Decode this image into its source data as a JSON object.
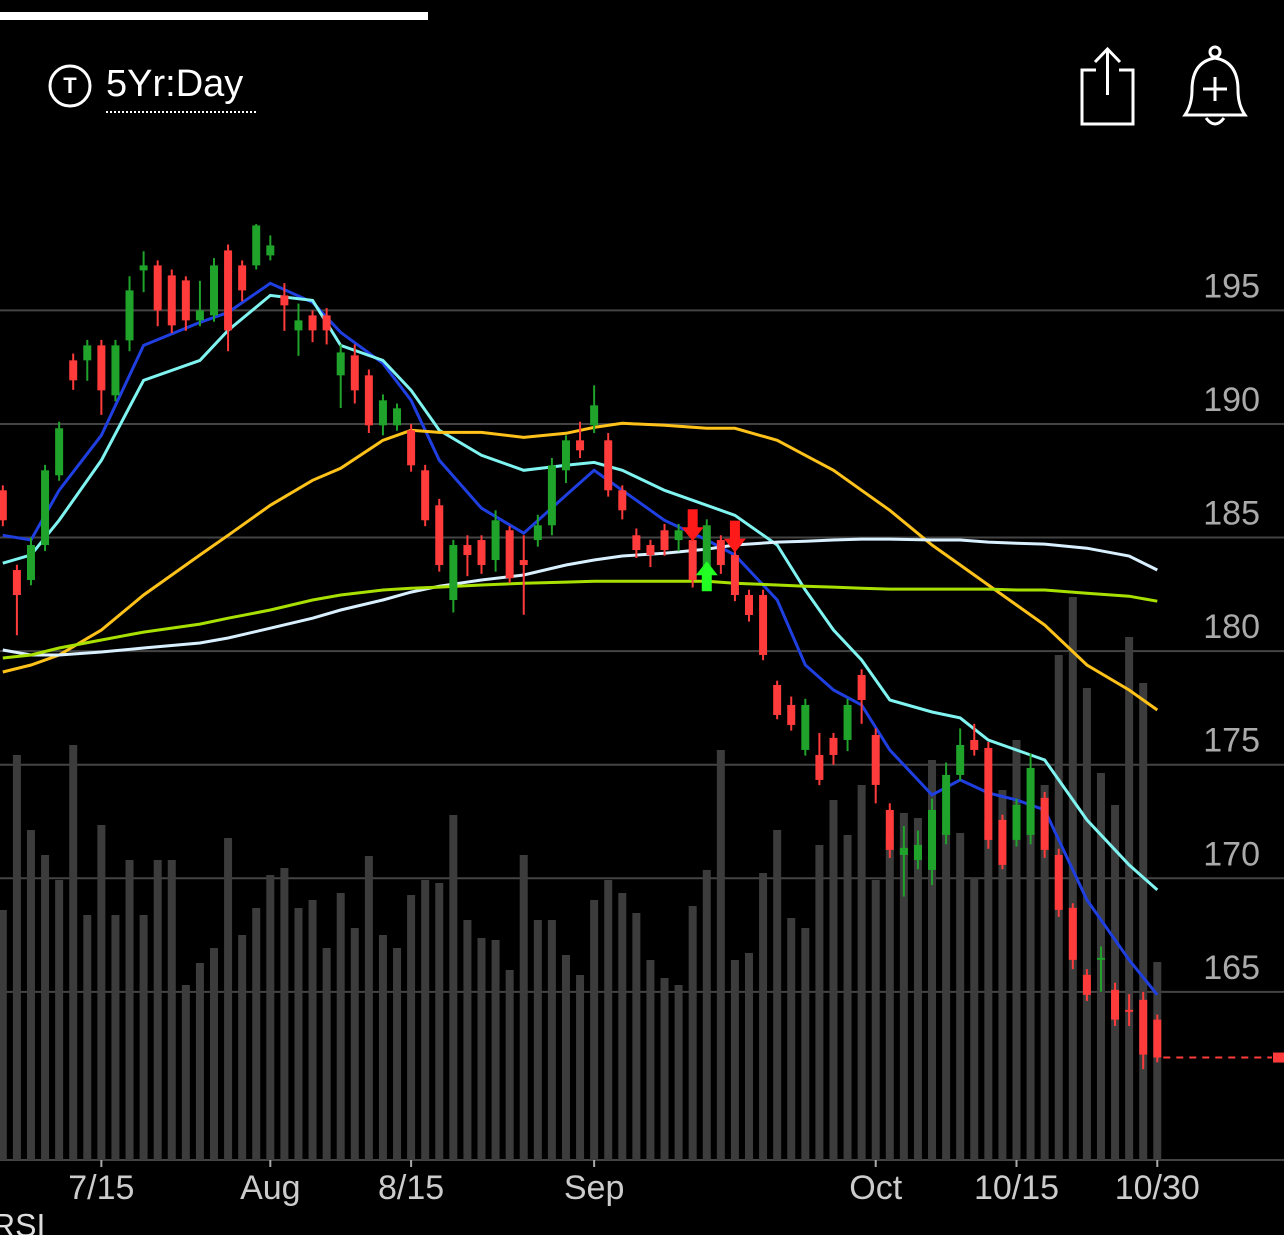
{
  "header": {
    "icon_letter": "T",
    "timeframe": "5Yr:Day"
  },
  "chart_data": {
    "type": "candlestick",
    "xlim": [
      -0.2,
      91
    ],
    "ylim": [
      157.6,
      202.5
    ],
    "yticks": [
      165,
      170,
      175,
      180,
      185,
      190,
      195
    ],
    "xticks": [
      {
        "value": 7,
        "label": "7/15"
      },
      {
        "value": 19,
        "label": "Aug"
      },
      {
        "value": 29,
        "label": "8/15"
      },
      {
        "value": 42,
        "label": "Sep"
      },
      {
        "value": 62,
        "label": "Oct"
      },
      {
        "value": 72,
        "label": "10/15"
      },
      {
        "value": 82,
        "label": "10/30"
      }
    ],
    "grid": true,
    "up_color": "#1fa32a",
    "down_color": "#ff3b3b",
    "open": [
      187.08,
      183.57,
      183.13,
      184.67,
      187.74,
      192.8,
      192.8,
      193.46,
      191.26,
      193.68,
      196.76,
      196.98,
      196.54,
      196.32,
      194.56,
      194.78,
      197.64,
      196.98,
      196.98,
      197.42,
      195.66,
      194.12,
      194.78,
      194.78,
      192.14,
      193.02,
      192.14,
      189.94,
      189.94,
      189.72,
      187.96,
      186.42,
      182.25,
      184.67,
      184.89,
      184.01,
      185.32,
      184.01,
      184.89,
      185.54,
      187.96,
      189.28,
      189.94,
      189.28,
      187.08,
      185.1,
      184.67,
      185.32,
      184.89,
      184.89,
      183.13,
      184.89,
      184.23,
      182.47,
      182.47,
      178.51,
      177.63,
      175.65,
      175.43,
      176.18,
      176.09,
      178.95,
      176.31,
      173.01,
      171.03,
      170.81,
      170.37,
      171.91,
      174.55,
      176.09,
      175.74,
      172.57,
      171.69,
      171.91,
      173.54,
      171.03,
      168.7,
      165.75,
      166.41,
      165.09,
      164.21,
      164.65,
      163.78
    ],
    "high": [
      187.3,
      183.8,
      185.0,
      188.2,
      190.1,
      193.1,
      193.7,
      193.7,
      193.7,
      196.5,
      197.6,
      197.2,
      196.8,
      196.5,
      196.3,
      197.3,
      197.9,
      197.2,
      198.8,
      198.3,
      196.2,
      195.3,
      195.0,
      195.1,
      193.5,
      193.5,
      192.4,
      191.3,
      190.9,
      190.0,
      188.2,
      186.7,
      184.9,
      185.1,
      185.1,
      186.2,
      185.5,
      185.1,
      186.0,
      188.5,
      189.5,
      190.1,
      191.7,
      189.6,
      187.3,
      185.4,
      184.9,
      185.6,
      185.6,
      185.1,
      185.8,
      185.1,
      184.6,
      182.7,
      182.7,
      178.7,
      178.0,
      177.9,
      176.4,
      176.4,
      177.9,
      179.2,
      176.6,
      173.3,
      172.3,
      172.1,
      173.5,
      175.1,
      176.6,
      176.8,
      176.0,
      172.8,
      173.5,
      175.5,
      173.8,
      171.3,
      168.9,
      166.0,
      167.0,
      165.4,
      164.9,
      165.0,
      164.0
    ],
    "low": [
      185.5,
      180.7,
      182.9,
      184.4,
      187.5,
      191.5,
      191.9,
      190.4,
      191.0,
      193.2,
      195.8,
      194.3,
      194.0,
      194.1,
      194.3,
      194.5,
      193.2,
      195.4,
      196.8,
      197.2,
      194.1,
      193.0,
      193.6,
      193.5,
      190.7,
      190.9,
      189.6,
      189.5,
      189.7,
      187.9,
      185.5,
      183.5,
      181.7,
      183.3,
      183.4,
      183.5,
      183.0,
      181.6,
      184.6,
      185.1,
      187.4,
      188.5,
      189.6,
      186.8,
      185.8,
      184.1,
      183.7,
      184.2,
      184.4,
      182.8,
      182.9,
      183.4,
      182.2,
      181.3,
      179.6,
      177.0,
      176.5,
      175.4,
      174.1,
      175.0,
      175.6,
      176.8,
      173.3,
      170.9,
      169.2,
      170.4,
      169.7,
      171.5,
      174.3,
      175.4,
      171.3,
      170.4,
      171.4,
      171.5,
      170.9,
      168.3,
      166.0,
      164.6,
      165.0,
      163.5,
      163.5,
      161.6,
      161.9
    ],
    "close": [
      185.76,
      182.47,
      184.67,
      187.96,
      189.81,
      191.92,
      193.46,
      191.48,
      193.46,
      195.88,
      196.98,
      195.0,
      194.34,
      194.56,
      195.0,
      196.98,
      194.12,
      195.88,
      198.74,
      197.86,
      195.22,
      194.56,
      194.12,
      194.12,
      193.15,
      191.48,
      189.94,
      191.04,
      190.69,
      188.18,
      185.76,
      183.79,
      184.67,
      184.23,
      183.79,
      185.76,
      183.21,
      183.79,
      185.54,
      188.18,
      189.28,
      188.84,
      190.82,
      187.08,
      186.2,
      184.45,
      184.23,
      184.45,
      185.32,
      183.13,
      185.54,
      183.79,
      182.47,
      181.59,
      179.83,
      177.19,
      176.75,
      177.63,
      174.33,
      175.43,
      177.63,
      177.85,
      174.11,
      171.25,
      171.34,
      171.47,
      173.01,
      174.55,
      175.87,
      175.65,
      171.69,
      170.59,
      173.23,
      174.86,
      171.25,
      168.61,
      166.41,
      164.87,
      166.5,
      163.78,
      164.13,
      162.24,
      162.11
    ],
    "volume": [
      250,
      405,
      330,
      305,
      280,
      415,
      245,
      335,
      245,
      300,
      245,
      300,
      300,
      175,
      197,
      212,
      322,
      225,
      252,
      285,
      292,
      252,
      260,
      212,
      267,
      232,
      304,
      225,
      212,
      265,
      280,
      277,
      345,
      240,
      222,
      220,
      190,
      305,
      240,
      240,
      205,
      185,
      260,
      280,
      267,
      247,
      200,
      182,
      175,
      254,
      290,
      410,
      200,
      207,
      287,
      330,
      242,
      232,
      315,
      360,
      325,
      375,
      280,
      322,
      347,
      342,
      400,
      342,
      327,
      282,
      340,
      370,
      420,
      360,
      375,
      505,
      563,
      472,
      387,
      355,
      523,
      477,
      198
    ],
    "volume_lim": [
      0,
      600
    ],
    "volume_color": "#3c3c3c",
    "moving_averages": [
      {
        "color": "#1f3fe0",
        "x": [
          0,
          2,
          4,
          7,
          10,
          14,
          16,
          19,
          22,
          24,
          27,
          29,
          31,
          34,
          37,
          40,
          42,
          44,
          47,
          50,
          52,
          55,
          57,
          59,
          61,
          63,
          66,
          68,
          70,
          72,
          74,
          77,
          80,
          82
        ],
        "values": [
          185.1,
          184.89,
          187.08,
          189.5,
          193.46,
          194.47,
          194.91,
          196.19,
          195.35,
          194.03,
          192.67,
          191.04,
          188.4,
          186.29,
          185.19,
          186.86,
          187.96,
          187.08,
          185.76,
          184.89,
          184.23,
          182.25,
          179.39,
          178.29,
          177.63,
          175.65,
          173.67,
          174.33,
          173.76,
          173.45,
          173.01,
          169.05,
          166.41,
          164.87
        ]
      },
      {
        "color": "#80f4f0",
        "x": [
          0,
          2,
          4,
          7,
          10,
          14,
          16,
          19,
          22,
          24,
          27,
          29,
          31,
          34,
          37,
          40,
          42,
          44,
          47,
          50,
          52,
          55,
          57,
          59,
          61,
          63,
          66,
          68,
          70,
          72,
          74,
          77,
          80,
          82
        ],
        "values": [
          183.87,
          184.23,
          185.76,
          188.4,
          191.92,
          192.8,
          194.12,
          195.66,
          195.44,
          193.46,
          192.8,
          191.48,
          189.72,
          188.62,
          187.96,
          188.18,
          188.31,
          187.96,
          187.08,
          186.42,
          185.98,
          184.67,
          182.69,
          180.93,
          179.61,
          177.85,
          177.32,
          177.06,
          176.09,
          175.65,
          175.21,
          172.57,
          170.59,
          169.49
        ]
      },
      {
        "color": "#ffc21a",
        "x": [
          0,
          2,
          4,
          7,
          10,
          14,
          16,
          19,
          22,
          24,
          27,
          29,
          31,
          34,
          37,
          40,
          42,
          44,
          47,
          50,
          52,
          55,
          57,
          59,
          61,
          63,
          66,
          68,
          70,
          72,
          74,
          77,
          80,
          82
        ],
        "values": [
          179.08,
          179.39,
          179.83,
          180.93,
          182.47,
          184.23,
          185.1,
          186.42,
          187.52,
          188.05,
          189.28,
          189.72,
          189.63,
          189.63,
          189.41,
          189.59,
          189.85,
          190.03,
          189.94,
          189.81,
          189.81,
          189.28,
          188.62,
          187.96,
          187.08,
          186.2,
          184.67,
          183.79,
          182.91,
          182.03,
          181.15,
          179.39,
          178.29,
          177.41
        ]
      },
      {
        "color": "#d8f0ff",
        "x": [
          0,
          2,
          4,
          7,
          10,
          14,
          16,
          19,
          22,
          24,
          27,
          29,
          31,
          34,
          37,
          40,
          42,
          44,
          47,
          50,
          52,
          55,
          57,
          59,
          61,
          63,
          66,
          68,
          70,
          72,
          74,
          77,
          80,
          82
        ],
        "values": [
          180.05,
          179.83,
          179.83,
          179.96,
          180.14,
          180.36,
          180.58,
          181.01,
          181.45,
          181.81,
          182.25,
          182.6,
          182.86,
          183.13,
          183.35,
          183.79,
          184.01,
          184.19,
          184.31,
          184.49,
          184.67,
          184.8,
          184.84,
          184.89,
          184.93,
          184.93,
          184.89,
          184.89,
          184.8,
          184.75,
          184.71,
          184.53,
          184.19,
          183.57
        ]
      },
      {
        "color": "#a8e000",
        "x": [
          0,
          2,
          4,
          7,
          10,
          14,
          16,
          19,
          22,
          24,
          27,
          29,
          31,
          34,
          37,
          40,
          42,
          44,
          47,
          50,
          52,
          55,
          57,
          59,
          61,
          63,
          66,
          68,
          70,
          72,
          74,
          77,
          80,
          82
        ],
        "values": [
          179.7,
          179.83,
          180.14,
          180.49,
          180.84,
          181.19,
          181.45,
          181.81,
          182.25,
          182.47,
          182.69,
          182.77,
          182.82,
          182.91,
          182.99,
          183.04,
          183.08,
          183.08,
          183.08,
          183.08,
          182.99,
          182.91,
          182.86,
          182.82,
          182.77,
          182.73,
          182.73,
          182.73,
          182.73,
          182.69,
          182.69,
          182.55,
          182.42,
          182.2
        ]
      }
    ],
    "buy_signals": [
      50
    ],
    "sell_signals": [
      49,
      52
    ]
  },
  "footer": {
    "indicator": "RSI"
  }
}
